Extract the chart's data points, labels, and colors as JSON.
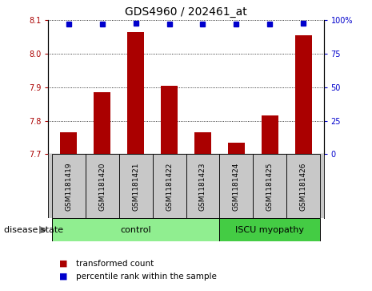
{
  "title": "GDS4960 / 202461_at",
  "samples": [
    "GSM1181419",
    "GSM1181420",
    "GSM1181421",
    "GSM1181422",
    "GSM1181423",
    "GSM1181424",
    "GSM1181425",
    "GSM1181426"
  ],
  "bar_values": [
    7.765,
    7.885,
    8.065,
    7.905,
    7.765,
    7.735,
    7.815,
    8.055
  ],
  "percentile_values": [
    97,
    97,
    98,
    97,
    97,
    97,
    97,
    98
  ],
  "ylim_left": [
    7.7,
    8.1
  ],
  "ylim_right": [
    0,
    100
  ],
  "yticks_left": [
    7.7,
    7.8,
    7.9,
    8.0,
    8.1
  ],
  "yticks_right": [
    0,
    25,
    50,
    75,
    100
  ],
  "bar_color": "#aa0000",
  "percentile_color": "#0000cc",
  "groups": [
    {
      "label": "control",
      "indices": [
        0,
        1,
        2,
        3,
        4
      ],
      "color": "#90ee90"
    },
    {
      "label": "ISCU myopathy",
      "indices": [
        5,
        6,
        7
      ],
      "color": "#44cc44"
    }
  ],
  "group_label": "disease state",
  "legend_bar_label": "transformed count",
  "legend_pct_label": "percentile rank within the sample",
  "background_color": "#ffffff",
  "tick_area_color": "#c8c8c8",
  "grid_color": "#000000",
  "title_fontsize": 10,
  "tick_label_fontsize": 7,
  "sample_fontsize": 6.5,
  "group_fontsize": 8,
  "legend_fontsize": 7.5,
  "disease_state_fontsize": 8
}
